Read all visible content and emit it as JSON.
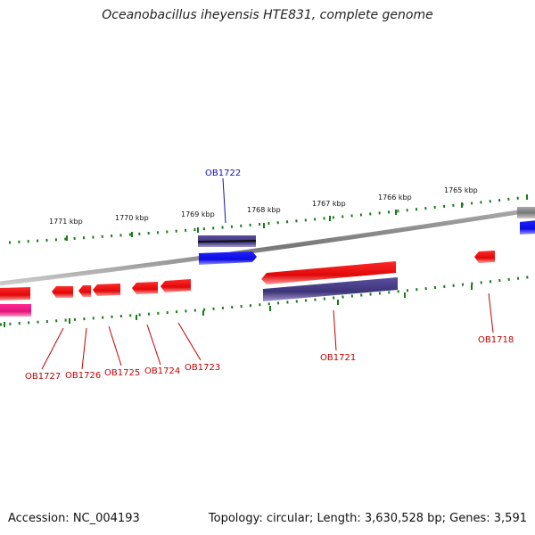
{
  "title": "Oceanobacillus iheyensis HTE831, complete genome",
  "footer": {
    "accession": "Accession: NC_004193",
    "topology": "Topology: circular; Length: 3,630,528 bp; Genes: 3,591"
  },
  "kbp_labels": [
    "1771 kbp",
    "1770 kbp",
    "1769 kbp",
    "1768 kbp",
    "1767 kbp",
    "1766 kbp",
    "1765 kbp"
  ],
  "gene_labels": {
    "ob1722": "OB1722",
    "ob1727": "OB1727",
    "ob1726": "OB1726",
    "ob1725": "OB1725",
    "ob1724": "OB1724",
    "ob1723": "OB1723",
    "ob1721": "OB1721",
    "ob1718": "OB1718"
  },
  "colors": {
    "cds": "#e01010",
    "rna": "#e0137a",
    "blue_feature": "#1010e0",
    "purple_feature": "#4a3f8a",
    "backbone": "#888888",
    "ticks": "#1a7a1a",
    "label_blue": "#1010b0",
    "label_red": "#c00000"
  }
}
